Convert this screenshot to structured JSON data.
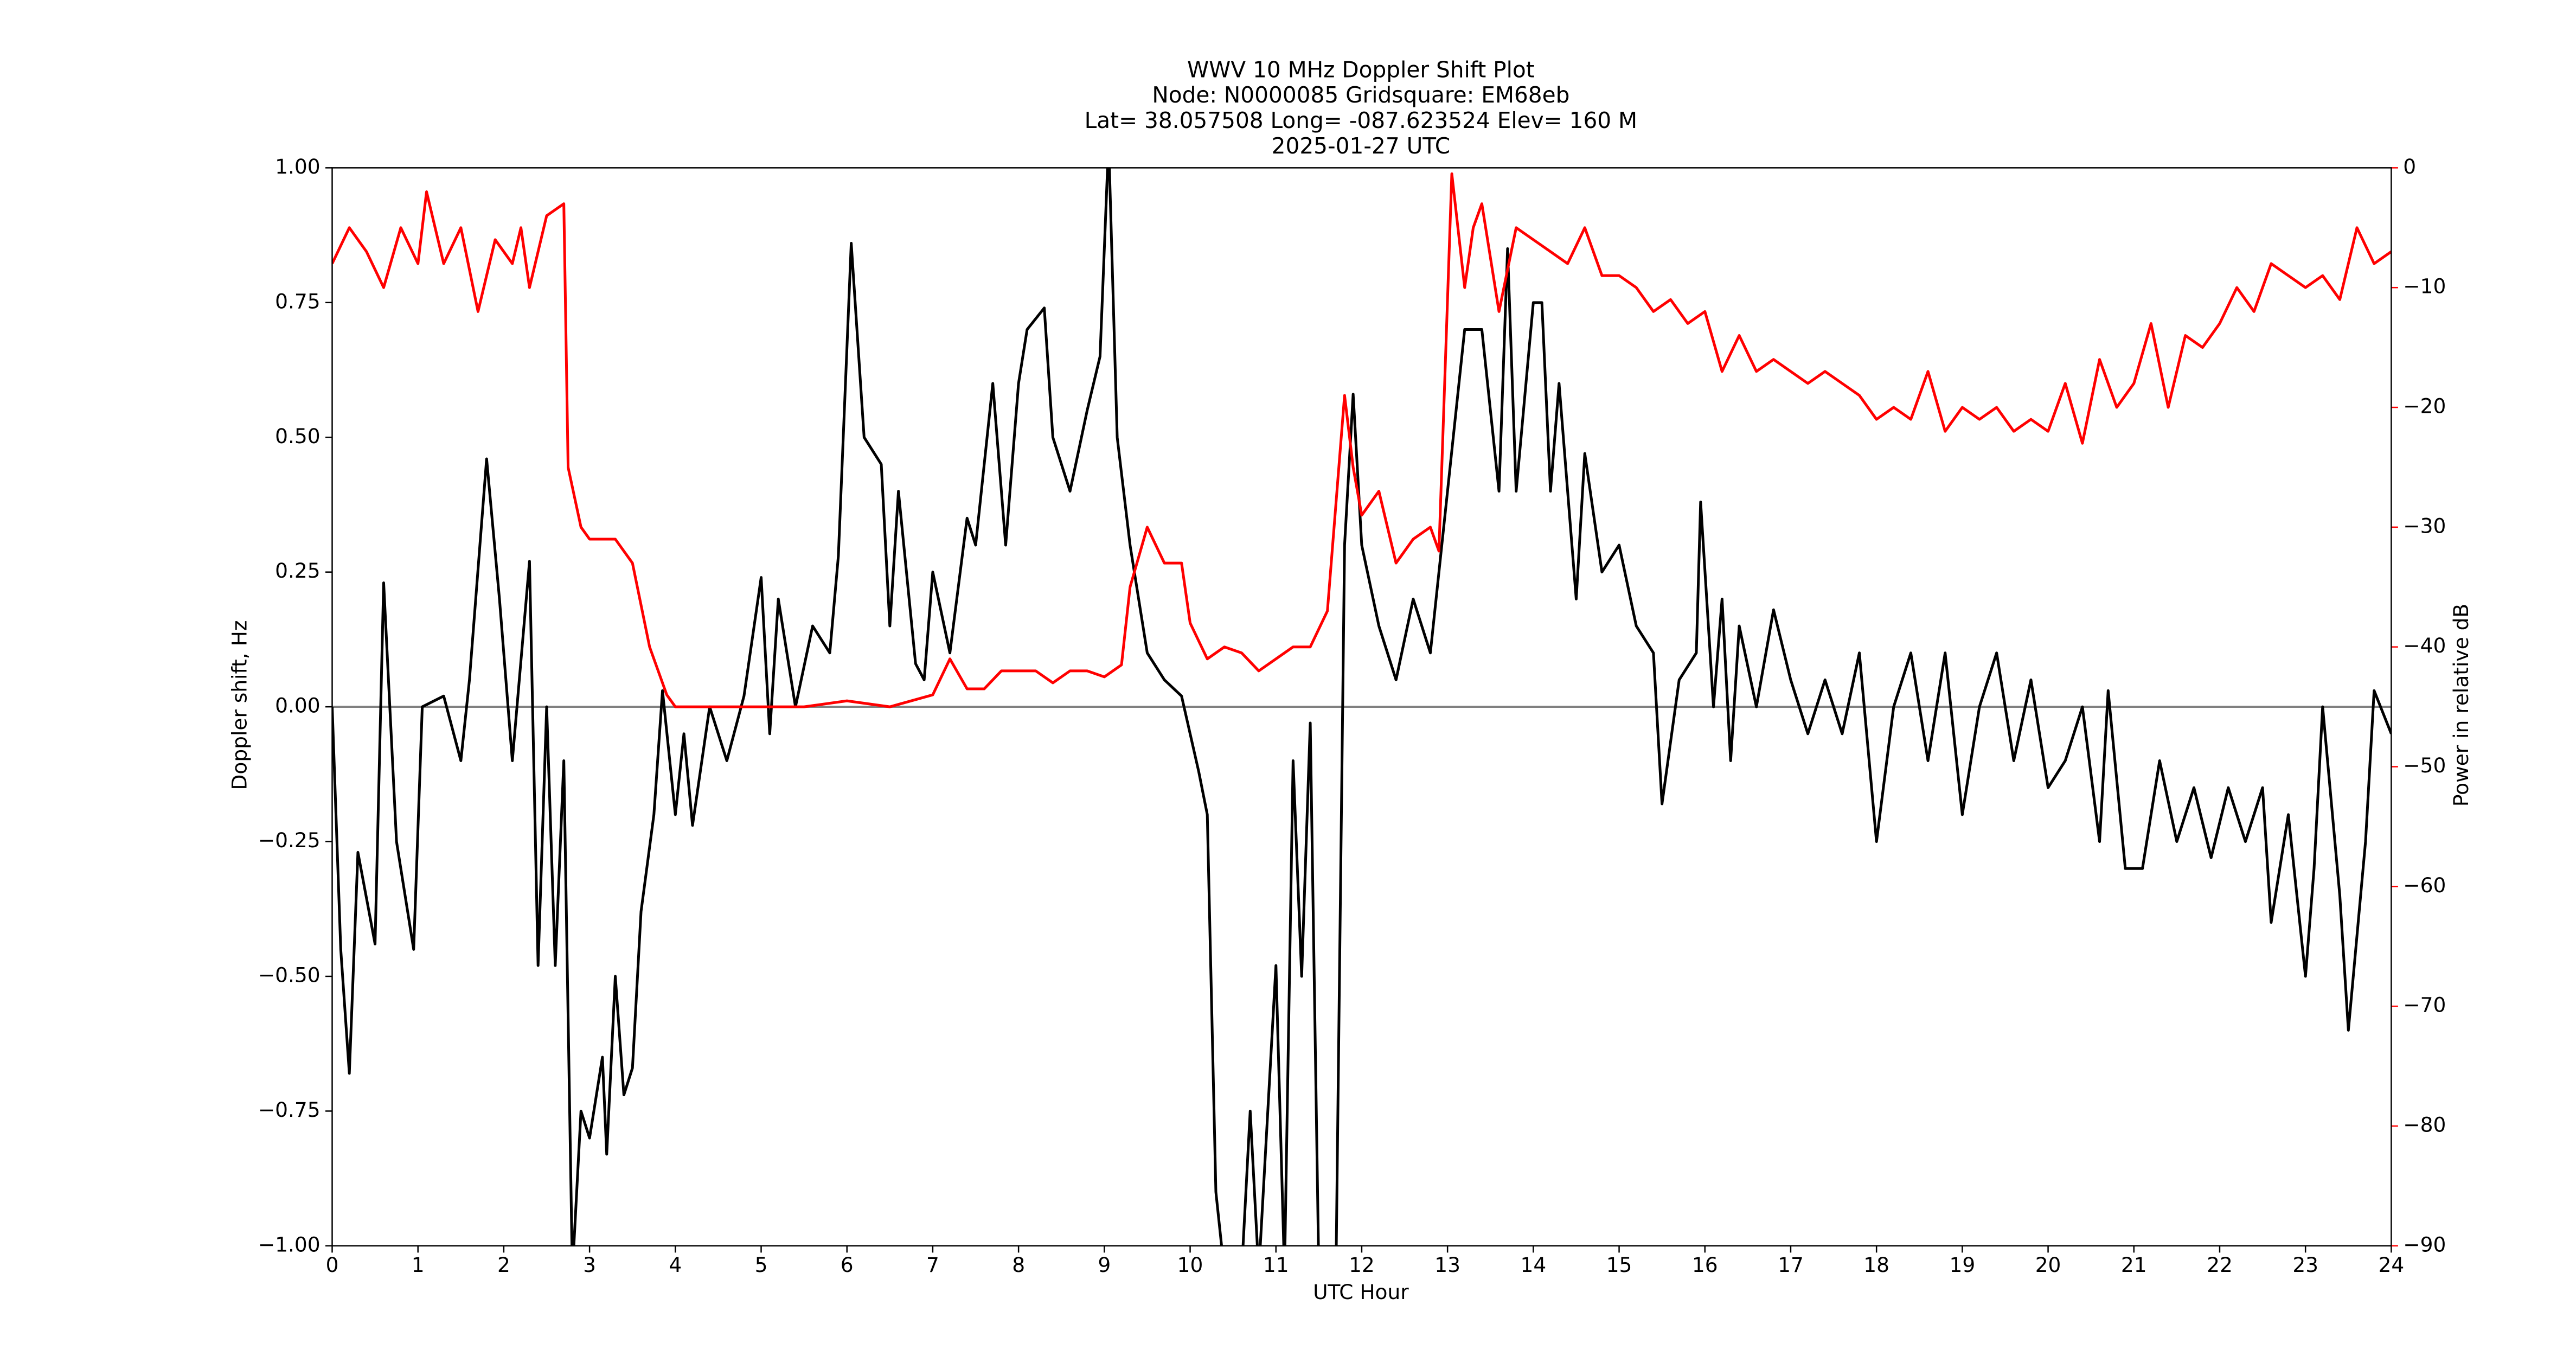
{
  "chart_data": {
    "type": "line",
    "title_lines": [
      "WWV 10 MHz Doppler Shift Plot",
      "Node:  N0000085     Gridsquare:  EM68eb",
      "Lat= 38.057508    Long= -087.623524    Elev= 160 M",
      "2025-01-27  UTC"
    ],
    "x_label": "UTC Hour",
    "y_label": "Doppler shift, Hz",
    "y2_label": "Power in relative dB",
    "xlim": [
      0,
      24
    ],
    "xticks": [
      0,
      1,
      2,
      3,
      4,
      5,
      6,
      7,
      8,
      9,
      10,
      11,
      12,
      13,
      14,
      15,
      16,
      17,
      18,
      19,
      20,
      21,
      22,
      23,
      24
    ],
    "ylim": [
      -1,
      1
    ],
    "yticks": [
      {
        "value": -1,
        "label": "−1.00"
      },
      {
        "value": -0.75,
        "label": "−0.75"
      },
      {
        "value": -0.5,
        "label": "−0.50"
      },
      {
        "value": -0.25,
        "label": "−0.25"
      },
      {
        "value": 0,
        "label": "0.00"
      },
      {
        "value": 0.25,
        "label": "0.25"
      },
      {
        "value": 0.5,
        "label": "0.50"
      },
      {
        "value": 0.75,
        "label": "0.75"
      },
      {
        "value": 1,
        "label": "1.00"
      }
    ],
    "y2lim": [
      -90,
      0
    ],
    "y2ticks": [
      {
        "value": -90,
        "label": "−90"
      },
      {
        "value": -80,
        "label": "−80"
      },
      {
        "value": -70,
        "label": "−70"
      },
      {
        "value": -60,
        "label": "−60"
      },
      {
        "value": -50,
        "label": "−50"
      },
      {
        "value": -40,
        "label": "−40"
      },
      {
        "value": -30,
        "label": "−30"
      },
      {
        "value": -20,
        "label": "−20"
      },
      {
        "value": -10,
        "label": "−10"
      },
      0
    ],
    "y2_color": "#ff0000",
    "hline": 0,
    "hline_color": "#808080",
    "series": [
      {
        "name": "Doppler shift",
        "color": "#000000",
        "x": [
          0,
          0.1,
          0.2,
          0.3,
          0.5,
          0.6,
          0.75,
          0.95,
          1.05,
          1.3,
          1.5,
          1.6,
          1.8,
          1.95,
          2.1,
          2.3,
          2.4,
          2.5,
          2.6,
          2.7,
          2.8,
          2.9,
          3.0,
          3.15,
          3.2,
          3.3,
          3.4,
          3.5,
          3.6,
          3.75,
          3.85,
          4.0,
          4.1,
          4.2,
          4.4,
          4.6,
          4.8,
          5.0,
          5.1,
          5.2,
          5.4,
          5.6,
          5.8,
          5.9,
          6.05,
          6.2,
          6.4,
          6.5,
          6.6,
          6.8,
          6.9,
          7.0,
          7.2,
          7.4,
          7.5,
          7.7,
          7.85,
          8.0,
          8.1,
          8.3,
          8.4,
          8.6,
          8.8,
          8.95,
          9.05,
          9.15,
          9.3,
          9.5,
          9.7,
          9.9,
          10.1,
          10.2,
          10.3,
          10.4,
          10.6,
          10.7,
          10.8,
          11.0,
          11.1,
          11.2,
          11.3,
          11.4,
          11.5,
          11.7,
          11.8,
          11.9,
          12.0,
          12.2,
          12.4,
          12.6,
          12.8,
          13.0,
          13.2,
          13.4,
          13.6,
          13.7,
          13.8,
          14.0,
          14.1,
          14.2,
          14.3,
          14.5,
          14.6,
          14.8,
          15.0,
          15.2,
          15.4,
          15.5,
          15.7,
          15.9,
          15.95,
          16.1,
          16.2,
          16.3,
          16.4,
          16.6,
          16.8,
          17.0,
          17.2,
          17.4,
          17.6,
          17.8,
          18.0,
          18.2,
          18.4,
          18.6,
          18.8,
          19.0,
          19.2,
          19.4,
          19.6,
          19.8,
          20.0,
          20.2,
          20.4,
          20.6,
          20.7,
          20.9,
          21.1,
          21.3,
          21.5,
          21.7,
          21.9,
          22.1,
          22.3,
          22.5,
          22.6,
          22.8,
          23.0,
          23.1,
          23.2,
          23.4,
          23.5,
          23.7,
          23.8,
          24.0
        ],
        "values": [
          0,
          -0.45,
          -0.68,
          -0.27,
          -0.44,
          0.23,
          -0.25,
          -0.45,
          0,
          0.02,
          -0.1,
          0.05,
          0.46,
          0.2,
          -0.1,
          0.27,
          -0.48,
          0,
          -0.48,
          -0.1,
          -1.05,
          -0.75,
          -0.8,
          -0.65,
          -0.83,
          -0.5,
          -0.72,
          -0.67,
          -0.38,
          -0.2,
          0.03,
          -0.2,
          -0.05,
          -0.22,
          0,
          -0.1,
          0.02,
          0.24,
          -0.05,
          0.2,
          0,
          0.15,
          0.1,
          0.28,
          0.86,
          0.5,
          0.45,
          0.15,
          0.4,
          0.08,
          0.05,
          0.25,
          0.1,
          0.35,
          0.3,
          0.6,
          0.3,
          0.6,
          0.7,
          0.74,
          0.5,
          0.4,
          0.55,
          0.65,
          1.05,
          0.5,
          0.3,
          0.1,
          0.05,
          0.02,
          -0.12,
          -0.2,
          -0.9,
          -1.05,
          -1.05,
          -0.75,
          -1.05,
          -0.48,
          -1.05,
          -0.1,
          -0.5,
          -0.03,
          -1.05,
          -1.05,
          0.3,
          0.58,
          0.3,
          0.15,
          0.05,
          0.2,
          0.1,
          0.4,
          0.7,
          0.7,
          0.4,
          0.85,
          0.4,
          0.75,
          0.75,
          0.4,
          0.6,
          0.2,
          0.47,
          0.25,
          0.3,
          0.15,
          0.1,
          -0.18,
          0.05,
          0.1,
          0.38,
          0,
          0.2,
          -0.1,
          0.15,
          0,
          0.18,
          0.05,
          -0.05,
          0.05,
          -0.05,
          0.1,
          -0.25,
          0,
          0.1,
          -0.1,
          0.1,
          -0.2,
          0,
          0.1,
          -0.1,
          0.05,
          -0.15,
          -0.1,
          0,
          -0.25,
          0.03,
          -0.3,
          -0.3,
          -0.1,
          -0.25,
          -0.15,
          -0.28,
          -0.15,
          -0.25,
          -0.15,
          -0.4,
          -0.2,
          -0.5,
          -0.3,
          0,
          -0.35,
          -0.6,
          -0.25,
          0.03,
          -0.05
        ]
      },
      {
        "name": "Power",
        "color": "#ff0000",
        "axis": "y2",
        "x": [
          0,
          0.2,
          0.4,
          0.6,
          0.8,
          1.0,
          1.1,
          1.3,
          1.5,
          1.7,
          1.9,
          2.1,
          2.2,
          2.3,
          2.5,
          2.7,
          2.75,
          2.9,
          3.0,
          3.3,
          3.5,
          3.7,
          3.9,
          4.0,
          4.5,
          5.0,
          5.5,
          6.0,
          6.5,
          7.0,
          7.2,
          7.4,
          7.6,
          7.8,
          8.0,
          8.2,
          8.4,
          8.6,
          8.8,
          9.0,
          9.2,
          9.3,
          9.5,
          9.7,
          9.9,
          10.0,
          10.2,
          10.4,
          10.6,
          10.8,
          11.0,
          11.2,
          11.4,
          11.6,
          11.8,
          11.9,
          12.0,
          12.2,
          12.4,
          12.6,
          12.8,
          12.9,
          13.05,
          13.2,
          13.3,
          13.4,
          13.6,
          13.8,
          14.0,
          14.2,
          14.4,
          14.6,
          14.8,
          15.0,
          15.2,
          15.4,
          15.6,
          15.8,
          16.0,
          16.2,
          16.4,
          16.6,
          16.8,
          17.0,
          17.2,
          17.4,
          17.6,
          17.8,
          18.0,
          18.2,
          18.4,
          18.6,
          18.8,
          19.0,
          19.2,
          19.4,
          19.6,
          19.8,
          20.0,
          20.2,
          20.4,
          20.6,
          20.8,
          21.0,
          21.2,
          21.4,
          21.6,
          21.8,
          22.0,
          22.2,
          22.4,
          22.6,
          22.8,
          23.0,
          23.2,
          23.4,
          23.6,
          23.8,
          24.0
        ],
        "values": [
          -8,
          -5,
          -7,
          -10,
          -5,
          -8,
          -2,
          -8,
          -5,
          -12,
          -6,
          -8,
          -5,
          -10,
          -4,
          -3,
          -25,
          -30,
          -31,
          -31,
          -33,
          -40,
          -44,
          -45,
          -45,
          -45,
          -45,
          -44.5,
          -45,
          -44,
          -41,
          -43.5,
          -43.5,
          -42,
          -42,
          -42,
          -43,
          -42,
          -42,
          -42.5,
          -41.5,
          -35,
          -30,
          -33,
          -33,
          -38,
          -41,
          -40,
          -40.5,
          -42,
          -41,
          -40,
          -40,
          -37,
          -19,
          -25,
          -29,
          -27,
          -33,
          -31,
          -30,
          -32,
          -0.5,
          -10,
          -5,
          -3,
          -12,
          -5,
          -6,
          -7,
          -8,
          -5,
          -9,
          -9,
          -10,
          -12,
          -11,
          -13,
          -12,
          -17,
          -14,
          -17,
          -16,
          -17,
          -18,
          -17,
          -18,
          -19,
          -21,
          -20,
          -21,
          -17,
          -22,
          -20,
          -21,
          -20,
          -22,
          -21,
          -22,
          -18,
          -23,
          -16,
          -20,
          -18,
          -13,
          -20,
          -14,
          -15,
          -13,
          -10,
          -12,
          -8,
          -9,
          -10,
          -9,
          -11,
          -5,
          -8,
          -7
        ]
      }
    ]
  }
}
